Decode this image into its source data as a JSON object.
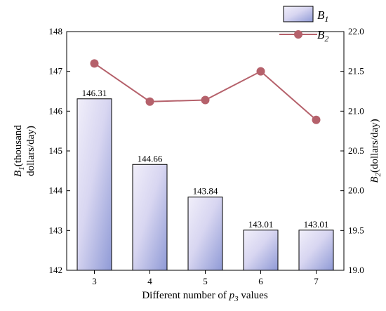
{
  "chart_data": {
    "type": "bar",
    "xlabel": "Different number of p3 values",
    "categories": [
      "3",
      "4",
      "5",
      "6",
      "7"
    ],
    "left_axis": {
      "label_lines": [
        "B1(thousand",
        "dollars/day)"
      ],
      "ylim": [
        142,
        148
      ],
      "ticks": [
        "142",
        "143",
        "144",
        "145",
        "146",
        "147",
        "148"
      ]
    },
    "right_axis": {
      "label": "B2(dollars/day)",
      "ylim": [
        19.0,
        22.0
      ],
      "ticks": [
        "19.0",
        "19.5",
        "20.0",
        "20.5",
        "21.0",
        "21.5",
        "22.0"
      ]
    },
    "series": [
      {
        "name": "B1",
        "kind": "bar",
        "axis": "left",
        "values": [
          146.31,
          144.66,
          143.84,
          143.01,
          143.01
        ],
        "labels": [
          "146.31",
          "144.66",
          "143.84",
          "143.01",
          "143.01"
        ]
      },
      {
        "name": "B2",
        "kind": "line",
        "axis": "right",
        "values": [
          21.6,
          21.12,
          21.14,
          21.5,
          20.89
        ],
        "color": "#b5616b"
      }
    ],
    "legend_position": "top-right",
    "grid": false
  }
}
